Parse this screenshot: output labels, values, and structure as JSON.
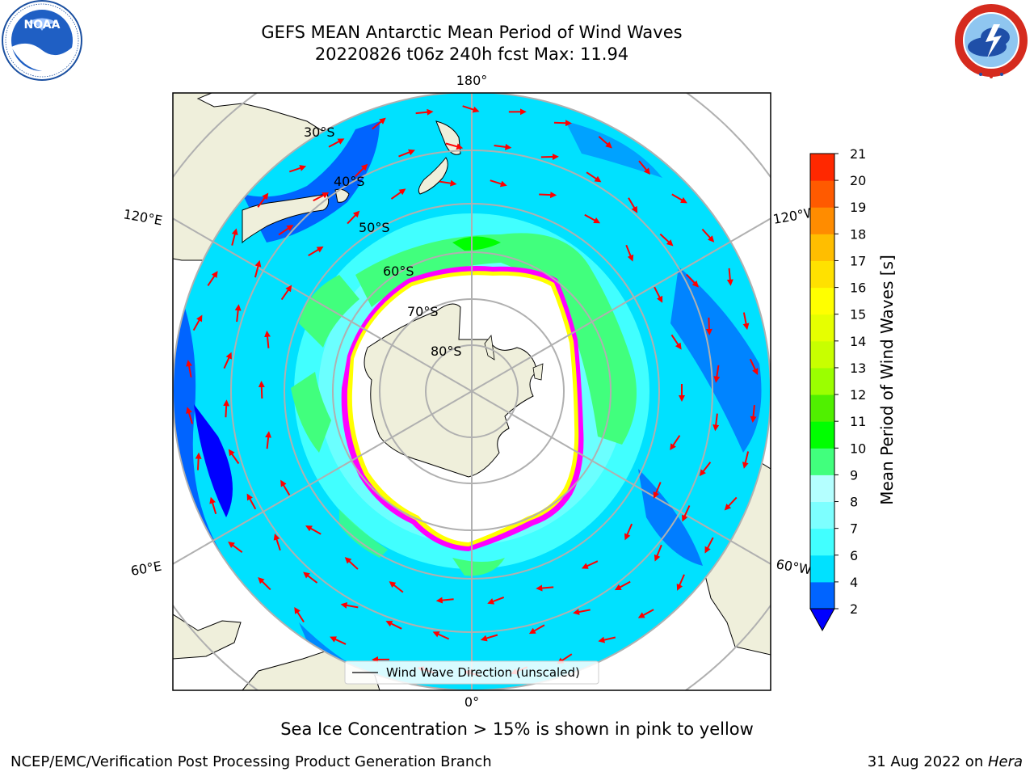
{
  "header": {
    "title_line1": "GEFS MEAN Antarctic Mean Period of Wind Waves",
    "title_line2": "20220826 t06z 240h fcst   Max: 11.94"
  },
  "logos": {
    "left": {
      "icon": "noaa-logo-icon",
      "text": "NOAA"
    },
    "right": {
      "icon": "national-weather-service-logo-icon"
    }
  },
  "map": {
    "projection": "south-polar-stereographic",
    "lon_labels": {
      "top": "180°",
      "bottom": "0°",
      "left_upper": "120°E",
      "left_lower": "60°E",
      "right_upper": "120°W",
      "right_lower": "60°W"
    },
    "lat_labels": [
      "30°S",
      "40°S",
      "50°S",
      "60°S",
      "70°S",
      "80°S"
    ],
    "legend_label": "Wind Wave Direction (unscaled)"
  },
  "colorbar": {
    "label": "Mean Period of Wind Waves [s]",
    "ticks": [
      "2",
      "4",
      "6",
      "7",
      "8",
      "9",
      "10",
      "11",
      "12",
      "13",
      "14",
      "15",
      "16",
      "17",
      "18",
      "19",
      "20",
      "21"
    ],
    "colors": [
      "#0064ff",
      "#00e1ff",
      "#41ffff",
      "#7dffff",
      "#b4ffff",
      "#41ff7d",
      "#00ff00",
      "#50f000",
      "#9bff00",
      "#c8ff00",
      "#e6ff00",
      "#ffff00",
      "#ffe100",
      "#ffbe00",
      "#ff8c00",
      "#ff5a00",
      "#ff2800",
      "#ff0000"
    ],
    "under_color": "#0000ff"
  },
  "footer": {
    "caption": "Sea Ice Concentration > 15% is shown in pink to yellow",
    "credit": "NCEP/EMC/Verification Post Processing Product Generation Branch",
    "date_text": "31 Aug 2022 on ",
    "machine": "Hera"
  }
}
